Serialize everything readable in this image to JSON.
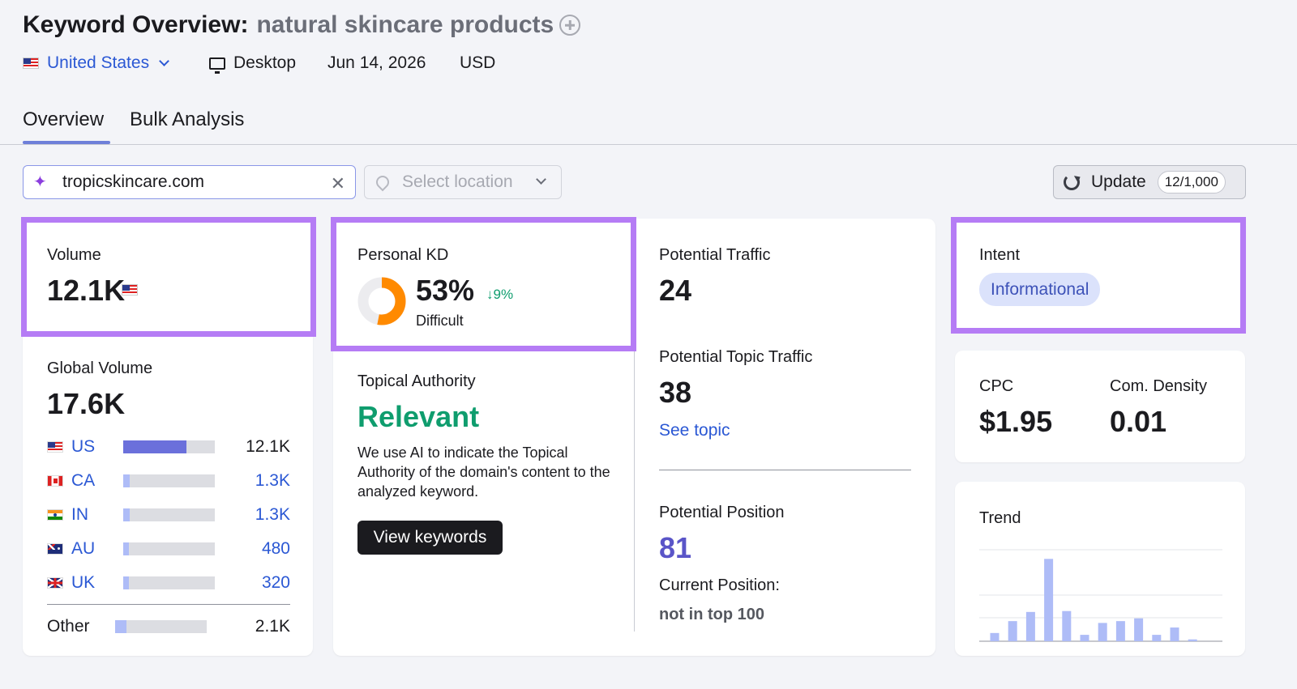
{
  "header": {
    "title": "Keyword Overview:",
    "keyword": "natural skincare products",
    "country": "United States",
    "device": "Desktop",
    "date": "Jun 14, 2026",
    "currency": "USD"
  },
  "tabs": [
    {
      "label": "Overview",
      "active": true
    },
    {
      "label": "Bulk Analysis",
      "active": false
    }
  ],
  "filters": {
    "domain": "tropicskincare.com",
    "location_placeholder": "Select location",
    "update_label": "Update",
    "update_count": "12/1,000"
  },
  "volume": {
    "label": "Volume",
    "value": "12.1K"
  },
  "global_volume": {
    "label": "Global Volume",
    "value": "17.6K",
    "countries": [
      {
        "code": "US",
        "value": "12.1K",
        "share": 0.69,
        "flag": "us"
      },
      {
        "code": "CA",
        "value": "1.3K",
        "share": 0.07,
        "flag": "ca"
      },
      {
        "code": "IN",
        "value": "1.3K",
        "share": 0.07,
        "flag": "in"
      },
      {
        "code": "AU",
        "value": "480",
        "share": 0.03,
        "flag": "au"
      },
      {
        "code": "UK",
        "value": "320",
        "share": 0.02,
        "flag": "uk"
      }
    ],
    "other": {
      "label": "Other",
      "value": "2.1K",
      "share": 0.12
    }
  },
  "personal_kd": {
    "label": "Personal KD",
    "value": "53%",
    "percent": 53,
    "change": "↓9%",
    "difficulty": "Difficult"
  },
  "topical_authority": {
    "label": "Topical Authority",
    "value": "Relevant",
    "description": "We use AI to indicate the Topical Authority of the domain's content to the analyzed keyword.",
    "button": "View keywords"
  },
  "potential": {
    "traffic_label": "Potential Traffic",
    "traffic_value": "24",
    "topic_traffic_label": "Potential Topic Traffic",
    "topic_traffic_value": "38",
    "see_topic": "See topic",
    "position_label": "Potential Position",
    "position_value": "81",
    "current_position_label": "Current Position:",
    "current_position_value": "not in top 100"
  },
  "intent": {
    "label": "Intent",
    "value": "Informational"
  },
  "cpc": {
    "label": "CPC",
    "value": "$1.95"
  },
  "com_density": {
    "label": "Com. Density",
    "value": "0.01"
  },
  "trend": {
    "label": "Trend",
    "values": [
      0.09,
      0.22,
      0.32,
      0.9,
      0.33,
      0.07,
      0.2,
      0.22,
      0.25,
      0.07,
      0.15,
      0.02
    ]
  },
  "colors": {
    "highlight": "#b57cf5",
    "kd_orange": "#ff8a00",
    "relevant_green": "#0f9d6e",
    "position_purple": "#5a55c8",
    "bar_us": "#6b70db",
    "bar_other": "#aebcf7",
    "trend_bar": "#aebcf7"
  }
}
